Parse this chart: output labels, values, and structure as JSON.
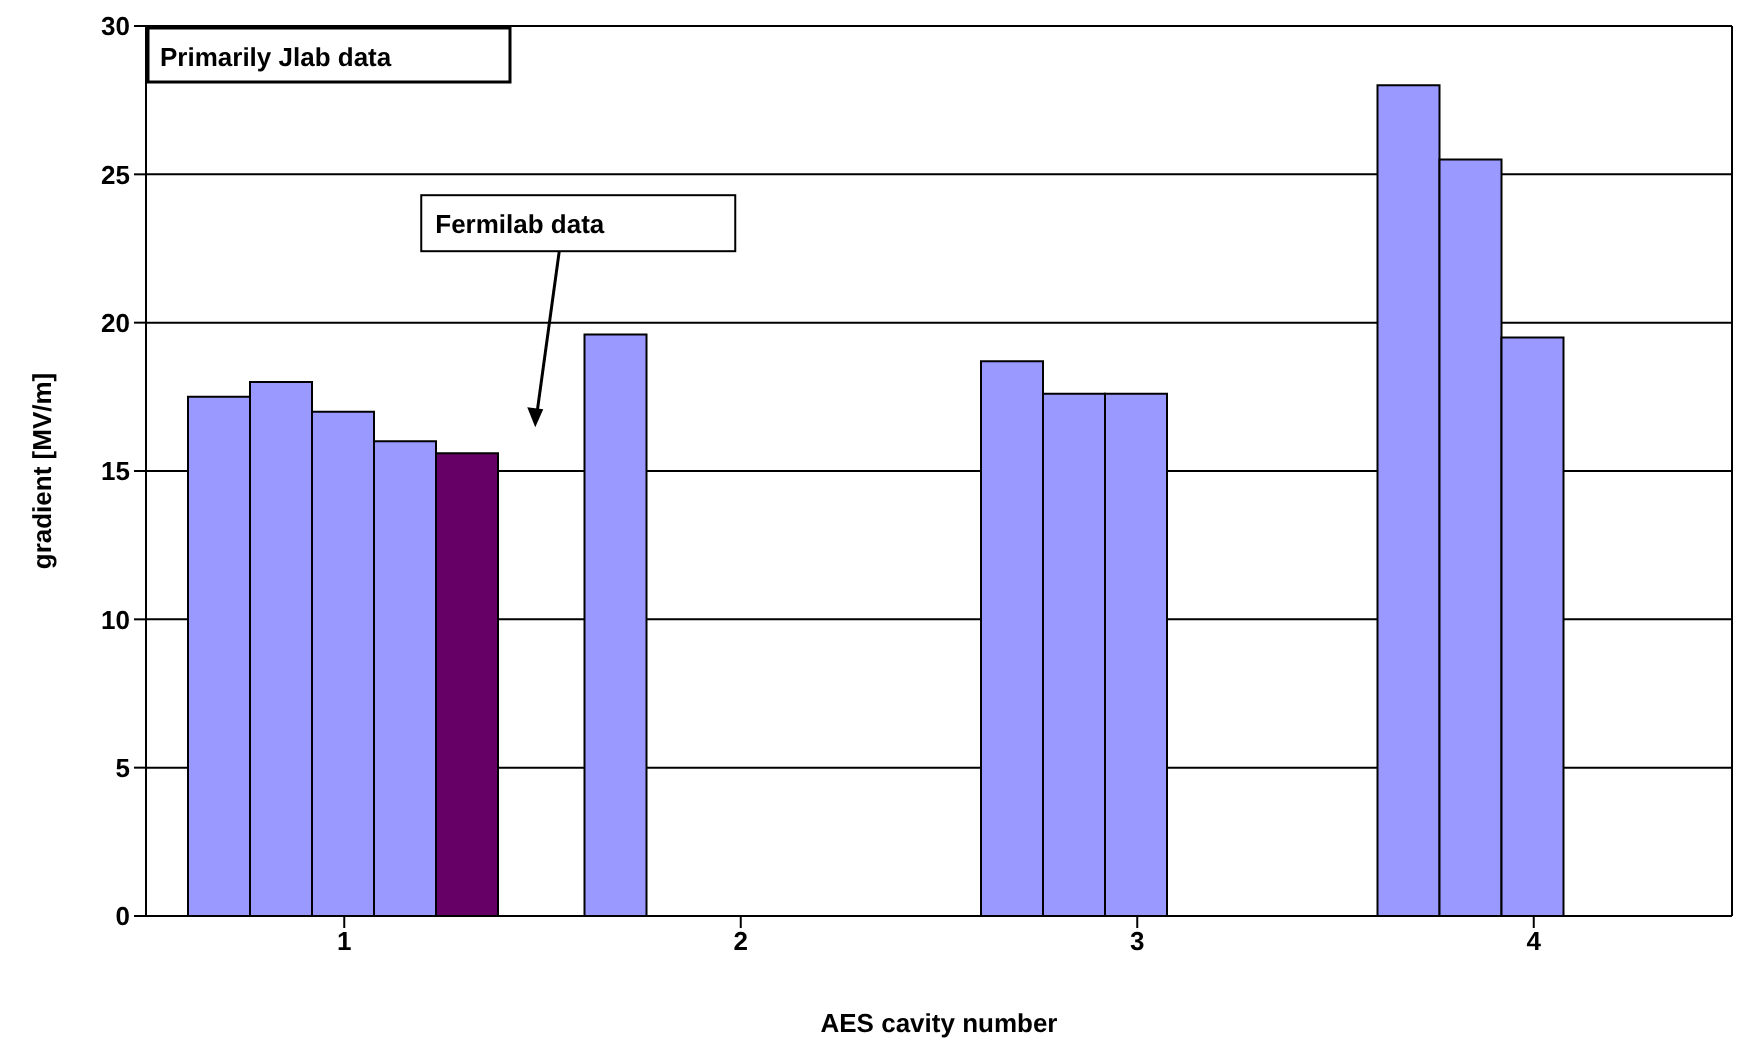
{
  "chart_data": {
    "type": "bar",
    "xlabel": "AES cavity number",
    "ylabel": "gradient [MV/m]",
    "categories": [
      "1",
      "2",
      "3",
      "4"
    ],
    "series": [
      {
        "color": "#9999ff",
        "values": [
          17.5,
          19.6,
          18.7,
          28
        ]
      },
      {
        "color": "#9999ff",
        "values": [
          18,
          null,
          17.6,
          25.5
        ]
      },
      {
        "color": "#9999ff",
        "values": [
          17,
          null,
          17.6,
          19.5
        ]
      },
      {
        "color": "#9999ff",
        "values": [
          16,
          null,
          null,
          null
        ]
      },
      {
        "color": "#660066",
        "values": [
          15.6,
          null,
          null,
          null
        ]
      }
    ],
    "ylim": [
      0,
      30
    ],
    "yticks": [
      0,
      5,
      10,
      15,
      20,
      25,
      30
    ],
    "grid": "y",
    "legend": false,
    "annotations": [
      "Primarily Jlab data",
      "Fermilab data"
    ]
  }
}
